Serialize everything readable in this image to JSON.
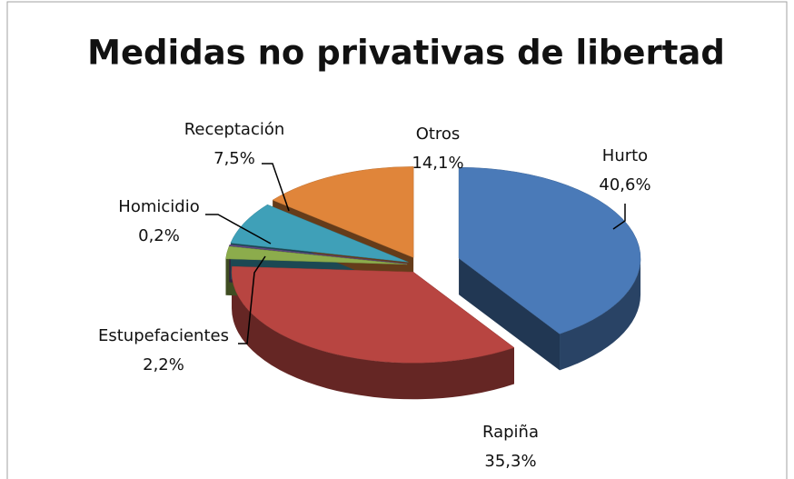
{
  "chart_data": {
    "type": "pie",
    "title": "Medidas no privativas de libertad",
    "categories": [
      "Hurto",
      "Rapiña",
      "Estupefacientes",
      "Homicidio",
      "Receptación",
      "Otros"
    ],
    "values": [
      40.6,
      35.3,
      2.2,
      0.2,
      7.5,
      14.1
    ],
    "value_labels": [
      "40,6%",
      "35,3%",
      "2,2%",
      "0,2%",
      "7,5%",
      "14,1%"
    ],
    "colors": [
      "#4a7ab8",
      "#b84541",
      "#8cac4c",
      "#6a4d8c",
      "#3fa0b8",
      "#e0853a"
    ]
  }
}
